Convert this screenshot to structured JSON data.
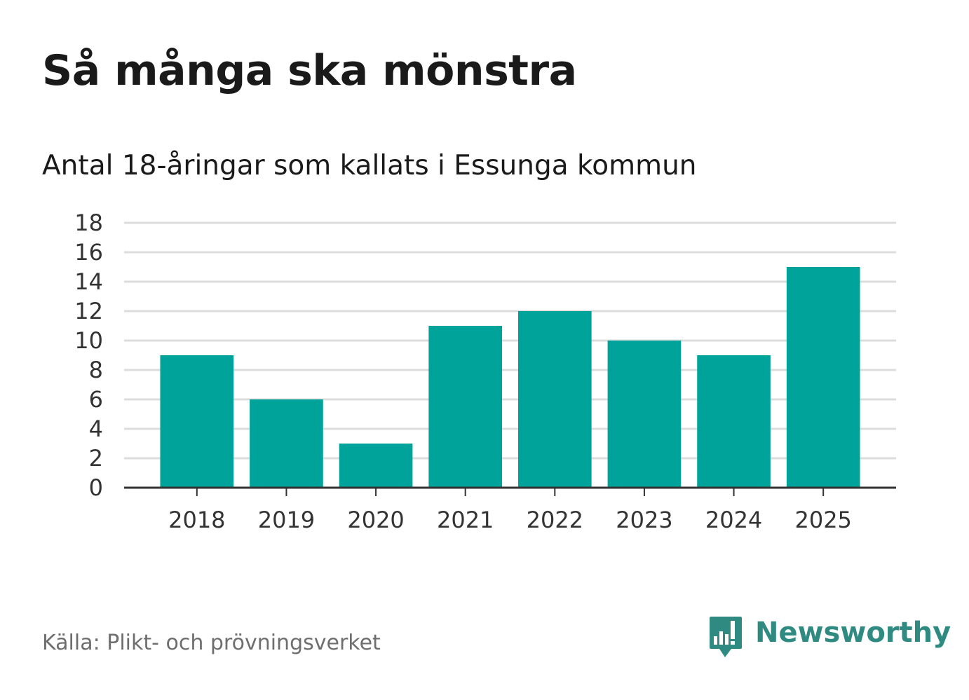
{
  "chart_data": {
    "type": "bar",
    "title": "Så många ska mönstra",
    "subtitle": "Antal 18-åringar som kallats i Essunga kommun",
    "categories": [
      "2018",
      "2019",
      "2020",
      "2021",
      "2022",
      "2023",
      "2024",
      "2025"
    ],
    "values": [
      9,
      6,
      3,
      11,
      12,
      10,
      9,
      15
    ],
    "yticks": [
      "0",
      "2",
      "4",
      "6",
      "8",
      "10",
      "12",
      "14",
      "16",
      "18"
    ],
    "ylim": [
      0,
      18
    ],
    "xlabel": "",
    "ylabel": "",
    "grid": true,
    "bar_color": "#00a39a",
    "source": "Källa: Plikt- och prövningsverket"
  },
  "brand": {
    "name": "Newsworthy",
    "color": "#2f8b81",
    "icon": "newsworthy-logo-icon"
  }
}
